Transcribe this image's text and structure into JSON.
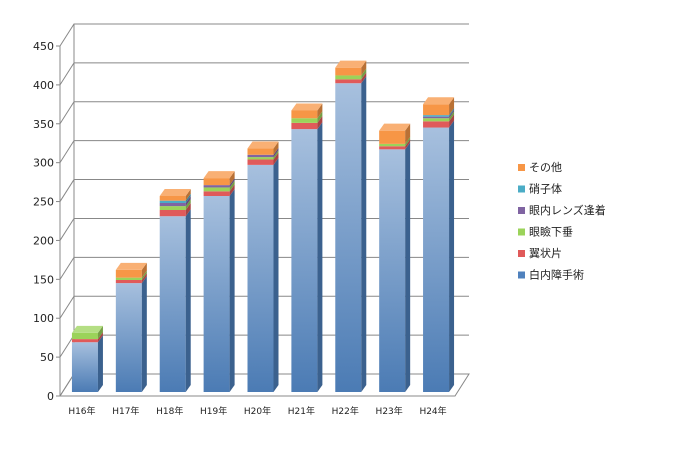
{
  "chart_data": {
    "type": "bar",
    "stacked": true,
    "three_d": true,
    "categories": [
      "H16年",
      "H17年",
      "H18年",
      "H19年",
      "H20年",
      "H21年",
      "H22年",
      "H23年",
      "H24年"
    ],
    "ylim": [
      0,
      450
    ],
    "yticks": [
      "0",
      "50",
      "100",
      "150",
      "200",
      "250",
      "300",
      "350",
      "400",
      "450"
    ],
    "grid": true,
    "legend_position": "right",
    "series": [
      {
        "name": "白内障手術",
        "color": "#4f81bd",
        "values": [
          64,
          140,
          226,
          252,
          292,
          338,
          397,
          312,
          340
        ]
      },
      {
        "name": "翼状片",
        "color": "#e05a5a",
        "values": [
          4,
          4,
          8,
          6,
          7,
          8,
          5,
          4,
          8
        ]
      },
      {
        "name": "眼瞼下垂",
        "color": "#9bd35a",
        "values": [
          8,
          3,
          5,
          5,
          3,
          6,
          5,
          3,
          4
        ]
      },
      {
        "name": "眼内レンズ逢着",
        "color": "#8064a2",
        "values": [
          0,
          0,
          4,
          3,
          3,
          0,
          0,
          0,
          2
        ]
      },
      {
        "name": "硝子体",
        "color": "#4bacc6",
        "values": [
          0,
          0,
          3,
          0,
          0,
          0,
          0,
          0,
          2
        ]
      },
      {
        "name": "その他",
        "color": "#f79646",
        "values": [
          0,
          10,
          6,
          9,
          8,
          10,
          10,
          17,
          14
        ]
      }
    ]
  }
}
